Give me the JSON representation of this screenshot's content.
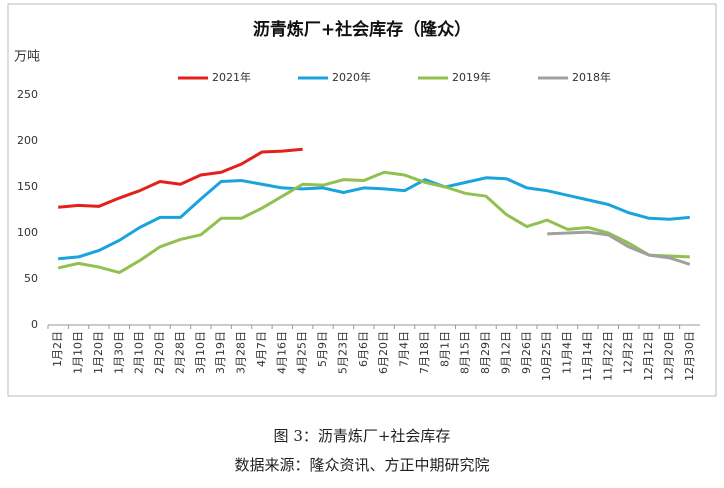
{
  "chart_data": {
    "type": "line",
    "title": "沥青炼厂+社会库存（隆众）",
    "y_unit": "万吨",
    "categories": [
      "1月2日",
      "1月10日",
      "1月20日",
      "1月30日",
      "2月10日",
      "2月20日",
      "2月28日",
      "3月10日",
      "3月19日",
      "3月28日",
      "4月7日",
      "4月16日",
      "4月25日",
      "5月9日",
      "5月23日",
      "6月6日",
      "6月20日",
      "7月4日",
      "7月18日",
      "8月1日",
      "8月15日",
      "8月29日",
      "9月12日",
      "9月26日",
      "10月25日",
      "11月4日",
      "11月14日",
      "11月22日",
      "12月2日",
      "12月12日",
      "12月20日",
      "12月30日"
    ],
    "series": [
      {
        "name": "2021年",
        "color": "#e3201c",
        "values": [
          128,
          130,
          129,
          138,
          146,
          156,
          153,
          163,
          166,
          175,
          188,
          189,
          191,
          null,
          null,
          null,
          null,
          null,
          null,
          null,
          null,
          null,
          null,
          null,
          null,
          null,
          null,
          null,
          null,
          null,
          null,
          null
        ]
      },
      {
        "name": "2020年",
        "color": "#1aa3dd",
        "values": [
          72,
          74,
          81,
          92,
          106,
          117,
          117,
          137,
          156,
          157,
          153,
          149,
          148,
          149,
          144,
          149,
          148,
          146,
          158,
          150,
          155,
          160,
          159,
          149,
          146,
          141,
          136,
          131,
          122,
          116,
          115,
          117
        ]
      },
      {
        "name": "2019年",
        "color": "#92c050",
        "values": [
          62,
          67,
          63,
          57,
          70,
          85,
          93,
          98,
          116,
          116,
          127,
          140,
          153,
          152,
          158,
          157,
          166,
          163,
          155,
          150,
          143,
          140,
          120,
          107,
          114,
          104,
          106,
          100,
          89,
          76,
          75,
          74
        ]
      },
      {
        "name": "2018年",
        "color": "#a0a0a0",
        "values": [
          null,
          null,
          null,
          null,
          null,
          null,
          null,
          null,
          null,
          null,
          null,
          null,
          null,
          null,
          null,
          null,
          null,
          null,
          null,
          null,
          null,
          null,
          null,
          null,
          99,
          100,
          101,
          98,
          85,
          76,
          73,
          66
        ]
      }
    ],
    "ylim": [
      0,
      250
    ],
    "yticks": [
      0,
      50,
      100,
      150,
      200,
      250
    ],
    "grid": false
  },
  "caption": "图 3：沥青炼厂+社会库存",
  "source": "数据来源：隆众资讯、方正中期研究院"
}
